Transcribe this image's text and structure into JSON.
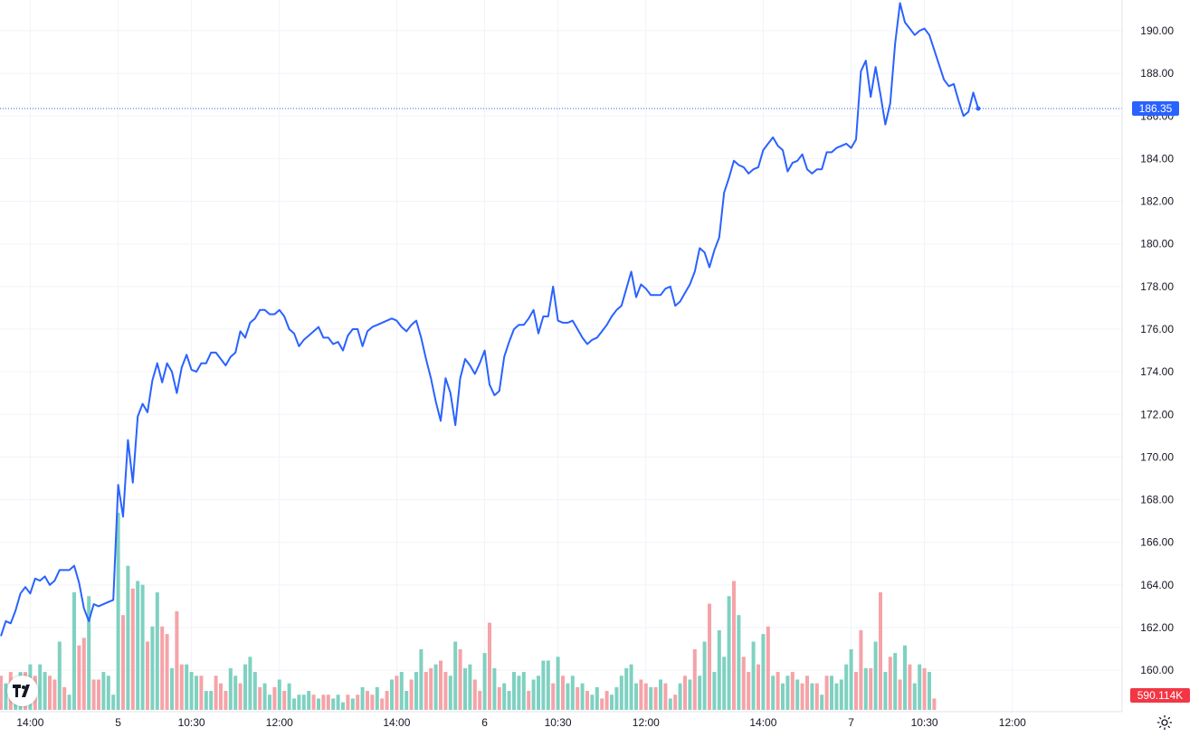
{
  "colors": {
    "line": "#2962ff",
    "grid": "#f0f3fa",
    "vol_up": "#7fd1c1",
    "vol_down": "#f5a3a8",
    "price_badge": "#2962ff",
    "vol_badge": "#f23645",
    "axis_text": "#131722"
  },
  "icons": {
    "logo": "tradingview-logo-icon",
    "settings": "gear-icon"
  },
  "price_label": "186.35",
  "volume_label": "590.114K",
  "chart_data": {
    "type": "line",
    "y_axis": {
      "ticks": [
        "190.00",
        "188.00",
        "186.00",
        "184.00",
        "182.00",
        "180.00",
        "178.00",
        "176.00",
        "174.00",
        "172.00",
        "170.00",
        "168.00",
        "166.00",
        "164.00",
        "162.00",
        "160.00"
      ],
      "range": [
        159.2,
        191.4
      ],
      "position": "right"
    },
    "x_axis": {
      "ticks": [
        {
          "label": "14:00",
          "i": 6
        },
        {
          "label": "5",
          "i": 24
        },
        {
          "label": "10:30",
          "i": 39
        },
        {
          "label": "12:00",
          "i": 57
        },
        {
          "label": "14:00",
          "i": 81
        },
        {
          "label": "6",
          "i": 99
        },
        {
          "label": "10:30",
          "i": 114
        },
        {
          "label": "12:00",
          "i": 132
        },
        {
          "label": "14:00",
          "i": 156
        },
        {
          "label": "7",
          "i": 174
        },
        {
          "label": "10:30",
          "i": 189
        },
        {
          "label": "12:00",
          "i": 207
        }
      ]
    },
    "grid": true,
    "last_price": 186.35,
    "price": [
      161.6,
      162.3,
      162.2,
      162.8,
      163.6,
      163.9,
      163.6,
      164.3,
      164.2,
      164.4,
      164.0,
      164.2,
      164.7,
      164.7,
      164.7,
      164.9,
      164.1,
      162.9,
      162.3,
      163.1,
      163.0,
      163.1,
      163.2,
      163.3,
      168.7,
      167.2,
      170.8,
      168.8,
      171.9,
      172.5,
      172.1,
      173.6,
      174.4,
      173.5,
      174.4,
      174.0,
      173.0,
      174.2,
      174.8,
      174.1,
      174.0,
      174.4,
      174.4,
      174.9,
      174.9,
      174.6,
      174.3,
      174.7,
      174.9,
      175.9,
      175.6,
      176.3,
      176.5,
      176.9,
      176.9,
      176.7,
      176.7,
      176.9,
      176.6,
      176.0,
      175.8,
      175.2,
      175.5,
      175.7,
      175.9,
      176.1,
      175.6,
      175.6,
      175.3,
      175.4,
      175.0,
      175.7,
      176.0,
      176.0,
      175.2,
      175.9,
      176.1,
      176.2,
      176.3,
      176.4,
      176.5,
      176.4,
      176.1,
      175.9,
      176.2,
      176.4,
      175.6,
      174.6,
      173.7,
      172.6,
      171.7,
      173.7,
      173.0,
      171.5,
      173.7,
      174.6,
      174.3,
      173.9,
      174.4,
      175.0,
      173.4,
      172.9,
      173.1,
      174.7,
      175.4,
      176.0,
      176.2,
      176.2,
      176.5,
      176.9,
      175.8,
      176.6,
      176.6,
      178.0,
      176.4,
      176.3,
      176.3,
      176.4,
      176.0,
      175.6,
      175.3,
      175.5,
      175.6,
      175.9,
      176.2,
      176.6,
      176.9,
      177.1,
      177.9,
      178.7,
      177.5,
      178.1,
      177.9,
      177.6,
      177.6,
      177.6,
      177.9,
      178.0,
      177.1,
      177.3,
      177.7,
      178.1,
      178.7,
      179.8,
      179.6,
      178.9,
      179.7,
      180.3,
      182.4,
      183.1,
      183.9,
      183.7,
      183.6,
      183.3,
      183.5,
      183.6,
      184.4,
      184.7,
      185.0,
      184.6,
      184.4,
      183.4,
      183.8,
      183.9,
      184.2,
      183.5,
      183.3,
      183.5,
      183.5,
      184.3,
      184.3,
      184.5,
      184.6,
      184.7,
      184.5,
      184.9,
      188.1,
      188.6,
      186.9,
      188.3,
      187.0,
      185.6,
      186.6,
      189.4,
      191.3,
      190.4,
      190.1,
      189.8,
      190.0,
      190.1,
      189.8,
      189.1,
      188.4,
      187.7,
      187.4,
      187.5,
      186.7,
      186.0,
      186.2,
      187.1,
      186.35
    ],
    "volume": [
      {
        "v": 9,
        "d": 1
      },
      {
        "v": 7,
        "d": 0
      },
      {
        "v": 10,
        "d": 1
      },
      {
        "v": 7,
        "d": 0
      },
      {
        "v": 10,
        "d": 0
      },
      {
        "v": 10,
        "d": 1
      },
      {
        "v": 12,
        "d": 0
      },
      {
        "v": 9,
        "d": 1
      },
      {
        "v": 12,
        "d": 0
      },
      {
        "v": 10,
        "d": 0
      },
      {
        "v": 9,
        "d": 1
      },
      {
        "v": 8,
        "d": 1
      },
      {
        "v": 18,
        "d": 0
      },
      {
        "v": 6,
        "d": 1
      },
      {
        "v": 4,
        "d": 0
      },
      {
        "v": 31,
        "d": 0
      },
      {
        "v": 17,
        "d": 1
      },
      {
        "v": 19,
        "d": 1
      },
      {
        "v": 30,
        "d": 0
      },
      {
        "v": 8,
        "d": 1
      },
      {
        "v": 8,
        "d": 1
      },
      {
        "v": 10,
        "d": 0
      },
      {
        "v": 9,
        "d": 0
      },
      {
        "v": 4,
        "d": 0
      },
      {
        "v": 52,
        "d": 0
      },
      {
        "v": 25,
        "d": 1
      },
      {
        "v": 38,
        "d": 0
      },
      {
        "v": 32,
        "d": 1
      },
      {
        "v": 34,
        "d": 0
      },
      {
        "v": 33,
        "d": 0
      },
      {
        "v": 18,
        "d": 1
      },
      {
        "v": 22,
        "d": 0
      },
      {
        "v": 31,
        "d": 0
      },
      {
        "v": 22,
        "d": 1
      },
      {
        "v": 20,
        "d": 1
      },
      {
        "v": 11,
        "d": 0
      },
      {
        "v": 26,
        "d": 1
      },
      {
        "v": 12,
        "d": 1
      },
      {
        "v": 12,
        "d": 0
      },
      {
        "v": 10,
        "d": 0
      },
      {
        "v": 9,
        "d": 0
      },
      {
        "v": 9,
        "d": 1
      },
      {
        "v": 5,
        "d": 0
      },
      {
        "v": 5,
        "d": 0
      },
      {
        "v": 9,
        "d": 1
      },
      {
        "v": 7,
        "d": 1
      },
      {
        "v": 5,
        "d": 1
      },
      {
        "v": 11,
        "d": 0
      },
      {
        "v": 9,
        "d": 0
      },
      {
        "v": 7,
        "d": 1
      },
      {
        "v": 12,
        "d": 0
      },
      {
        "v": 14,
        "d": 0
      },
      {
        "v": 10,
        "d": 0
      },
      {
        "v": 6,
        "d": 1
      },
      {
        "v": 7,
        "d": 0
      },
      {
        "v": 4,
        "d": 0
      },
      {
        "v": 6,
        "d": 1
      },
      {
        "v": 8,
        "d": 0
      },
      {
        "v": 5,
        "d": 1
      },
      {
        "v": 7,
        "d": 0
      },
      {
        "v": 3,
        "d": 0
      },
      {
        "v": 4,
        "d": 0
      },
      {
        "v": 4,
        "d": 0
      },
      {
        "v": 5,
        "d": 0
      },
      {
        "v": 4,
        "d": 1
      },
      {
        "v": 3,
        "d": 0
      },
      {
        "v": 4,
        "d": 1
      },
      {
        "v": 4,
        "d": 1
      },
      {
        "v": 3,
        "d": 0
      },
      {
        "v": 4,
        "d": 0
      },
      {
        "v": 2,
        "d": 0
      },
      {
        "v": 4,
        "d": 1
      },
      {
        "v": 3,
        "d": 0
      },
      {
        "v": 4,
        "d": 1
      },
      {
        "v": 6,
        "d": 0
      },
      {
        "v": 5,
        "d": 1
      },
      {
        "v": 4,
        "d": 1
      },
      {
        "v": 6,
        "d": 0
      },
      {
        "v": 3,
        "d": 1
      },
      {
        "v": 5,
        "d": 1
      },
      {
        "v": 8,
        "d": 0
      },
      {
        "v": 9,
        "d": 1
      },
      {
        "v": 10,
        "d": 0
      },
      {
        "v": 5,
        "d": 0
      },
      {
        "v": 8,
        "d": 1
      },
      {
        "v": 10,
        "d": 0
      },
      {
        "v": 16,
        "d": 0
      },
      {
        "v": 10,
        "d": 1
      },
      {
        "v": 11,
        "d": 1
      },
      {
        "v": 12,
        "d": 0
      },
      {
        "v": 13,
        "d": 1
      },
      {
        "v": 10,
        "d": 1
      },
      {
        "v": 9,
        "d": 0
      },
      {
        "v": 18,
        "d": 0
      },
      {
        "v": 16,
        "d": 1
      },
      {
        "v": 11,
        "d": 0
      },
      {
        "v": 12,
        "d": 0
      },
      {
        "v": 8,
        "d": 1
      },
      {
        "v": 5,
        "d": 1
      },
      {
        "v": 15,
        "d": 0
      },
      {
        "v": 23,
        "d": 1
      },
      {
        "v": 11,
        "d": 0
      },
      {
        "v": 6,
        "d": 1
      },
      {
        "v": 7,
        "d": 0
      },
      {
        "v": 5,
        "d": 0
      },
      {
        "v": 10,
        "d": 0
      },
      {
        "v": 9,
        "d": 0
      },
      {
        "v": 10,
        "d": 0
      },
      {
        "v": 5,
        "d": 1
      },
      {
        "v": 8,
        "d": 0
      },
      {
        "v": 9,
        "d": 0
      },
      {
        "v": 13,
        "d": 0
      },
      {
        "v": 13,
        "d": 0
      },
      {
        "v": 7,
        "d": 1
      },
      {
        "v": 14,
        "d": 0
      },
      {
        "v": 9,
        "d": 1
      },
      {
        "v": 7,
        "d": 0
      },
      {
        "v": 9,
        "d": 0
      },
      {
        "v": 6,
        "d": 1
      },
      {
        "v": 7,
        "d": 0
      },
      {
        "v": 5,
        "d": 1
      },
      {
        "v": 4,
        "d": 0
      },
      {
        "v": 6,
        "d": 0
      },
      {
        "v": 3,
        "d": 1
      },
      {
        "v": 5,
        "d": 1
      },
      {
        "v": 4,
        "d": 0
      },
      {
        "v": 6,
        "d": 0
      },
      {
        "v": 9,
        "d": 0
      },
      {
        "v": 11,
        "d": 0
      },
      {
        "v": 12,
        "d": 0
      },
      {
        "v": 7,
        "d": 0
      },
      {
        "v": 8,
        "d": 1
      },
      {
        "v": 7,
        "d": 1
      },
      {
        "v": 6,
        "d": 0
      },
      {
        "v": 6,
        "d": 1
      },
      {
        "v": 8,
        "d": 0
      },
      {
        "v": 7,
        "d": 1
      },
      {
        "v": 3,
        "d": 0
      },
      {
        "v": 4,
        "d": 1
      },
      {
        "v": 7,
        "d": 0
      },
      {
        "v": 9,
        "d": 1
      },
      {
        "v": 8,
        "d": 0
      },
      {
        "v": 16,
        "d": 1
      },
      {
        "v": 9,
        "d": 0
      },
      {
        "v": 18,
        "d": 0
      },
      {
        "v": 28,
        "d": 1
      },
      {
        "v": 10,
        "d": 0
      },
      {
        "v": 21,
        "d": 0
      },
      {
        "v": 14,
        "d": 0
      },
      {
        "v": 30,
        "d": 0
      },
      {
        "v": 34,
        "d": 1
      },
      {
        "v": 25,
        "d": 0
      },
      {
        "v": 14,
        "d": 1
      },
      {
        "v": 10,
        "d": 1
      },
      {
        "v": 18,
        "d": 0
      },
      {
        "v": 12,
        "d": 1
      },
      {
        "v": 20,
        "d": 0
      },
      {
        "v": 22,
        "d": 1
      },
      {
        "v": 9,
        "d": 0
      },
      {
        "v": 10,
        "d": 1
      },
      {
        "v": 7,
        "d": 0
      },
      {
        "v": 9,
        "d": 0
      },
      {
        "v": 10,
        "d": 1
      },
      {
        "v": 8,
        "d": 0
      },
      {
        "v": 7,
        "d": 1
      },
      {
        "v": 9,
        "d": 1
      },
      {
        "v": 7,
        "d": 0
      },
      {
        "v": 7,
        "d": 1
      },
      {
        "v": 4,
        "d": 0
      },
      {
        "v": 9,
        "d": 1
      },
      {
        "v": 9,
        "d": 0
      },
      {
        "v": 7,
        "d": 0
      },
      {
        "v": 8,
        "d": 0
      },
      {
        "v": 12,
        "d": 0
      },
      {
        "v": 16,
        "d": 0
      },
      {
        "v": 10,
        "d": 1
      },
      {
        "v": 21,
        "d": 1
      },
      {
        "v": 11,
        "d": 0
      },
      {
        "v": 11,
        "d": 1
      },
      {
        "v": 18,
        "d": 0
      },
      {
        "v": 31,
        "d": 1
      },
      {
        "v": 10,
        "d": 0
      },
      {
        "v": 14,
        "d": 1
      },
      {
        "v": 15,
        "d": 0
      },
      {
        "v": 8,
        "d": 1
      },
      {
        "v": 17,
        "d": 0
      },
      {
        "v": 12,
        "d": 1
      },
      {
        "v": 7,
        "d": 0
      },
      {
        "v": 12,
        "d": 0
      },
      {
        "v": 11,
        "d": 1
      },
      {
        "v": 10,
        "d": 0
      },
      {
        "v": 3,
        "d": 1
      }
    ]
  }
}
